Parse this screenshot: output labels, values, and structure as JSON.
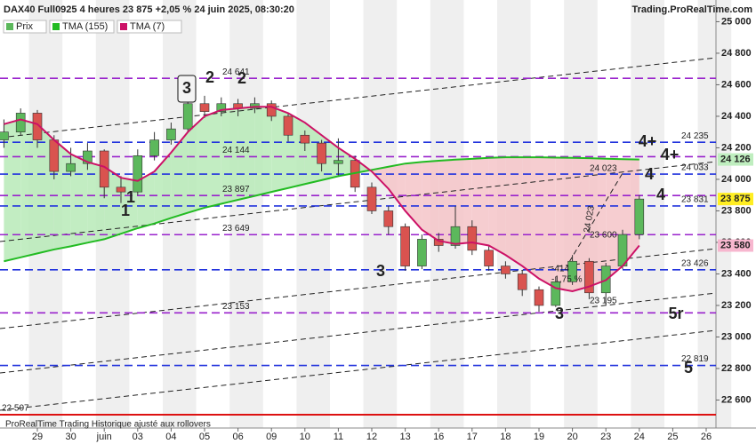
{
  "chart_data": {
    "type": "candlestick",
    "title": "DAX40 Full0925 4 heures 23 875 +2,05 % 24 juin 2025, 08:30:20",
    "source": "Trading.ProRealTime.com",
    "footer": "ProRealTime Trading  Historique ajusté aux rollovers",
    "categories": [
      null,
      null,
      "29",
      null,
      "30",
      null,
      "juin",
      null,
      "03",
      null,
      "04",
      null,
      "05",
      null,
      "06",
      null,
      "09",
      null,
      "10",
      null,
      "11",
      null,
      "12",
      null,
      "13",
      null,
      "16",
      null,
      "17",
      null,
      "18",
      null,
      "19",
      null,
      "20",
      null,
      "23",
      null,
      "24",
      null,
      "25",
      null,
      "26",
      null
    ],
    "open": [
      24250,
      24300,
      24420,
      24250,
      24050,
      24100,
      24180,
      23950,
      23920,
      24150,
      24250,
      24320,
      24480,
      24430,
      24480,
      24450,
      24480,
      24400,
      24280,
      24230,
      24100,
      24120,
      23950,
      23800,
      23700,
      23450,
      23620,
      23580,
      23700,
      23550,
      23450,
      23400,
      23300,
      23200,
      23350,
      23480,
      23280,
      23450,
      23650,
      null,
      null,
      null,
      null,
      null
    ],
    "high": [
      24380,
      24450,
      24440,
      24280,
      24200,
      24230,
      24190,
      24020,
      24190,
      24300,
      24360,
      24640,
      24530,
      24520,
      24510,
      24520,
      24500,
      24420,
      24310,
      24250,
      24260,
      24150,
      23980,
      23830,
      23720,
      23650,
      23660,
      23830,
      23740,
      23580,
      23480,
      23420,
      23320,
      23380,
      23520,
      23500,
      23470,
      23680,
      23900,
      null,
      null,
      null,
      null,
      null
    ],
    "low": [
      24200,
      24280,
      24200,
      24000,
      24020,
      24060,
      23880,
      23850,
      23900,
      24120,
      24220,
      24300,
      24390,
      24400,
      24400,
      24420,
      24370,
      24240,
      24180,
      24050,
      24020,
      23920,
      23780,
      23650,
      23420,
      23430,
      23540,
      23560,
      23520,
      23420,
      23370,
      23260,
      23160,
      23190,
      23330,
      23240,
      23200,
      23430,
      23620,
      null,
      null,
      null,
      null,
      null
    ],
    "close": [
      24300,
      24420,
      24250,
      24050,
      24100,
      24180,
      23950,
      23920,
      24150,
      24250,
      24320,
      24480,
      24430,
      24480,
      24450,
      24480,
      24400,
      24280,
      24230,
      24100,
      24120,
      23950,
      23800,
      23700,
      23450,
      23620,
      23580,
      23700,
      23550,
      23450,
      23400,
      23300,
      23200,
      23350,
      23480,
      23280,
      23450,
      23650,
      23875,
      null,
      null,
      null,
      null,
      null
    ],
    "up_color": "#5cb85c",
    "down_color": "#d9534f",
    "series": [
      {
        "name": "TMA (155)",
        "color": "#22bb22",
        "values": [
          23480,
          23505,
          23530,
          23555,
          23575,
          23598,
          23620,
          23655,
          23690,
          23720,
          23755,
          23788,
          23820,
          23845,
          23870,
          23895,
          23920,
          23945,
          23970,
          23995,
          24020,
          24040,
          24060,
          24080,
          24100,
          24110,
          24118,
          24125,
          24130,
          24136,
          24140,
          24140,
          24140,
          24138,
          24136,
          24134,
          24131,
          24128,
          24126,
          null,
          null,
          null,
          null,
          null
        ]
      },
      {
        "name": "TMA (7)",
        "color": "#cc1166",
        "values": [
          24350,
          24380,
          24350,
          24250,
          24160,
          24110,
          24080,
          24010,
          23990,
          24050,
          24170,
          24300,
          24400,
          24440,
          24450,
          24460,
          24460,
          24420,
          24360,
          24280,
          24200,
          24130,
          24050,
          23940,
          23800,
          23680,
          23610,
          23590,
          23600,
          23580,
          23520,
          23450,
          23370,
          23310,
          23290,
          23320,
          23360,
          23450,
          23580,
          null,
          null,
          null,
          null,
          null
        ]
      }
    ],
    "legend_price": "Prix",
    "ylim": [
      22490,
      25025
    ],
    "yticks": [
      {
        "value": 22600,
        "label": "22 600"
      },
      {
        "value": 22800,
        "label": "22 800"
      },
      {
        "value": 23000,
        "label": "23 000"
      },
      {
        "value": 23200,
        "label": "23 200"
      },
      {
        "value": 23400,
        "label": "23 400"
      },
      {
        "value": 23600,
        "label": "23 600"
      },
      {
        "value": 23800,
        "label": "23 800"
      },
      {
        "value": 24000,
        "label": "24 000"
      },
      {
        "value": 24200,
        "label": "24 200"
      },
      {
        "value": 24400,
        "label": "24 400"
      },
      {
        "value": 24600,
        "label": "24 600"
      },
      {
        "value": 24800,
        "label": "24 800"
      },
      {
        "value": 25000,
        "label": "25 000"
      }
    ],
    "levels": [
      {
        "value": 24641,
        "label": "24 641",
        "color": "#9922cc"
      },
      {
        "value": 24235,
        "label": "24 235",
        "color": "#2233dd"
      },
      {
        "value": 24144,
        "label": "24 144",
        "color": "#9922cc"
      },
      {
        "value": 24033,
        "label": "24 033",
        "color": "#2233dd"
      },
      {
        "value": 23897,
        "label": "23 897",
        "color": "#9922cc"
      },
      {
        "value": 23831,
        "label": "23 831",
        "color": "#2233dd"
      },
      {
        "value": 23649,
        "label": "23 649",
        "color": "#9922cc"
      },
      {
        "value": 23426,
        "label": "23 426",
        "color": "#2233dd"
      },
      {
        "value": 23153,
        "label": "23 153",
        "color": "#9922cc"
      },
      {
        "value": 22819,
        "label": "22 819",
        "color": "#2233dd"
      },
      {
        "value": 22507,
        "label": "22 507",
        "color": "#dd1111"
      }
    ],
    "badges": [
      {
        "value": 24126,
        "label": "24 126",
        "color": "#bfeebf"
      },
      {
        "value": 23875,
        "label": "23 875",
        "color": "#ffee22"
      },
      {
        "value": 23580,
        "label": "23 580",
        "color": "#f7b7cf"
      }
    ],
    "annotations": [
      {
        "text": "1",
        "color": "#2233dd"
      },
      {
        "text": "1",
        "color": "#9922cc"
      },
      {
        "text": "2",
        "color": "#9922cc"
      },
      {
        "text": "2",
        "color": "#2233dd"
      },
      {
        "text": "3",
        "color": "#111111"
      },
      {
        "text": "3",
        "color": "#2233dd"
      },
      {
        "text": "3",
        "color": "#9922cc"
      },
      {
        "text": "4+",
        "color": "#2233dd"
      },
      {
        "text": "4+",
        "color": "#9922cc"
      },
      {
        "text": "4",
        "color": "#2233dd"
      },
      {
        "text": "4",
        "color": "#9922cc"
      },
      {
        "text": "5r",
        "color": "#9922cc"
      },
      {
        "text": "5",
        "color": "#2233dd"
      }
    ],
    "notes": [
      "24 023",
      "24 023",
      "23 600",
      "23 195",
      "-414",
      "-1,75 %"
    ]
  }
}
